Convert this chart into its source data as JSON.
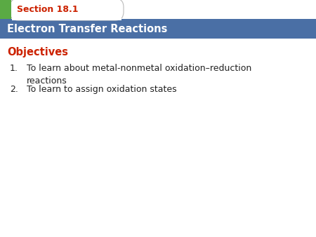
{
  "section_label": "Section 18.1",
  "title": "Electron Transfer Reactions",
  "objectives_label": "Objectives",
  "item1_num": "1.",
  "item1_text": "To learn about metal-nonmetal oxidation–reduction\nreactions",
  "item2_num": "2.",
  "item2_text": "To learn to assign oxidation states",
  "bg_color": "#ffffff",
  "tab_text_color": "#ffffff",
  "section_text_color": "#cc2200",
  "green_rect_color": "#5aaa44",
  "objectives_color": "#cc2200",
  "body_text_color": "#222222",
  "banner_color": "#4a6fa5",
  "tab_border_color": "#bbbbbb",
  "fig_width": 4.5,
  "fig_height": 3.38,
  "dpi": 100
}
